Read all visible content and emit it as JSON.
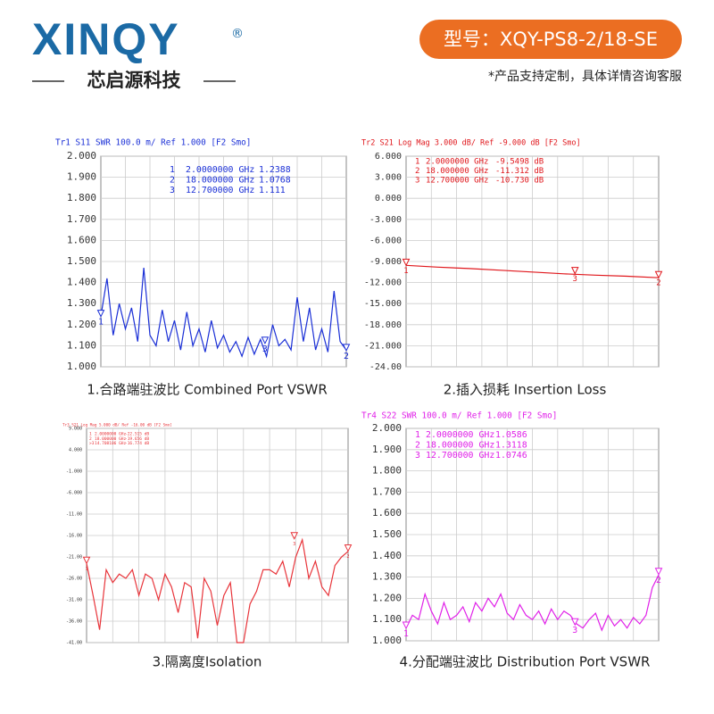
{
  "header": {
    "logo": "XINQY",
    "registered": "®",
    "company": "芯启源科技",
    "model": "型号：XQY-PS8-2/18-SE",
    "note": "*产品支持定制，具体详情咨询客服"
  },
  "chart_data": [
    {
      "type": "line",
      "title": "Tr1 S11 SWR 100.0 m/ Ref 1.000 [F2 Smo]",
      "caption": "1.合路端驻波比 Combined Port VSWR",
      "x": [
        2,
        2.4,
        2.8,
        3.2,
        3.6,
        4,
        4.4,
        4.8,
        5.2,
        5.6,
        6,
        6.4,
        6.8,
        7.2,
        7.6,
        8,
        8.4,
        8.8,
        9.2,
        9.6,
        10,
        10.4,
        10.8,
        11.2,
        11.6,
        12,
        12.4,
        12.8,
        13.2,
        13.6,
        14,
        14.4,
        14.8,
        15.2,
        15.6,
        16,
        16.4,
        16.8,
        17.2,
        17.6,
        18
      ],
      "xlim": [
        2,
        18
      ],
      "ylim": [
        1,
        2
      ],
      "yticks": [
        {
          "value": 1,
          "label": "1.000"
        },
        {
          "value": 1.1,
          "label": "1.100"
        },
        {
          "value": 1.2,
          "label": "1.200"
        },
        {
          "value": 1.3,
          "label": "1.300"
        },
        {
          "value": 1.4,
          "label": "1.400"
        },
        {
          "value": 1.5,
          "label": "1.500"
        },
        {
          "value": 1.6,
          "label": "1.600"
        },
        {
          "value": 1.7,
          "label": "1.700"
        },
        {
          "value": 1.8,
          "label": "1.800"
        },
        {
          "value": 1.9,
          "label": "1.900"
        },
        {
          "value": 2,
          "label": "2.000"
        }
      ],
      "grid": true,
      "series": [
        {
          "color": "#1a2fd6",
          "values": [
            1.24,
            1.42,
            1.15,
            1.3,
            1.18,
            1.28,
            1.12,
            1.47,
            1.15,
            1.1,
            1.27,
            1.12,
            1.22,
            1.08,
            1.26,
            1.1,
            1.18,
            1.07,
            1.22,
            1.09,
            1.15,
            1.07,
            1.12,
            1.05,
            1.14,
            1.06,
            1.13,
            1.05,
            1.2,
            1.1,
            1.13,
            1.08,
            1.33,
            1.12,
            1.28,
            1.08,
            1.18,
            1.07,
            1.36,
            1.12,
            1.08
          ]
        }
      ],
      "markers": [
        {
          "label": "1",
          "x": 2,
          "freq": "2.0000000 GHz",
          "value": 1.2388
        },
        {
          "label": "2",
          "x": 18,
          "freq": "18.000000 GHz",
          "value": 1.0768
        },
        {
          "label": "3",
          "x": 12.7,
          "freq": "12.700000 GHz",
          "value": 1.111
        }
      ]
    },
    {
      "type": "line",
      "title": "Tr2 S21 Log Mag 3.000 dB/ Ref -9.000 dB [F2 Smo]",
      "caption": "2.插入损耗 Insertion Loss",
      "x": [
        2,
        4,
        6,
        8,
        10,
        12,
        14,
        16,
        18
      ],
      "xlim": [
        2,
        18
      ],
      "ylim": [
        -24,
        6
      ],
      "yticks": [
        {
          "value": -24,
          "label": "-24.00"
        },
        {
          "value": -21,
          "label": "-21.000"
        },
        {
          "value": -18,
          "label": "-18.000"
        },
        {
          "value": -15,
          "label": "-15.000"
        },
        {
          "value": -12,
          "label": "-12.000"
        },
        {
          "value": -9,
          "label": "-9.000"
        },
        {
          "value": -6,
          "label": "-6.000"
        },
        {
          "value": -3,
          "label": "-3.000"
        },
        {
          "value": 0,
          "label": "0.000"
        },
        {
          "value": 3,
          "label": "3.000"
        },
        {
          "value": 6,
          "label": "6.000"
        }
      ],
      "grid": true,
      "series": [
        {
          "color": "#e0161b",
          "values": [
            -9.55,
            -9.8,
            -10.0,
            -10.25,
            -10.5,
            -10.75,
            -10.95,
            -11.1,
            -11.31
          ]
        }
      ],
      "markers": [
        {
          "label": "1",
          "x": 2,
          "freq": "2.0000000 GHz",
          "value": -9.5498,
          "value_label": "-9.5498 dB"
        },
        {
          "label": "2",
          "x": 18,
          "freq": "18.000000 GHz",
          "value": -11.312,
          "value_label": "-11.312 dB"
        },
        {
          "label": "3",
          "x": 12.7,
          "freq": "12.700000 GHz",
          "value": -10.73,
          "value_label": "-10.730 dB"
        }
      ]
    },
    {
      "type": "line",
      "title": "Tr3 S21 Log Mag 5.000 dB/ Ref -16.00 dB [F2 Smo]",
      "caption": "3.隔离度Isolation",
      "x": [
        2,
        2.4,
        2.8,
        3.2,
        3.6,
        4,
        4.4,
        4.8,
        5.2,
        5.6,
        6,
        6.4,
        6.8,
        7.2,
        7.6,
        8,
        8.4,
        8.8,
        9.2,
        9.6,
        10,
        10.4,
        10.8,
        11.2,
        11.6,
        12,
        12.4,
        12.8,
        13.2,
        13.6,
        14,
        14.4,
        14.8,
        15.2,
        15.6,
        16,
        16.4,
        16.8,
        17.2,
        17.6,
        18
      ],
      "xlim": [
        2,
        18
      ],
      "ylim": [
        -41,
        9
      ],
      "yticks": [
        {
          "value": -41,
          "label": "-41.00"
        },
        {
          "value": -36,
          "label": "-36.00"
        },
        {
          "value": -31,
          "label": "-31.00"
        },
        {
          "value": -26,
          "label": "-26.00"
        },
        {
          "value": -21,
          "label": "-21.00"
        },
        {
          "value": -16,
          "label": "-16.00"
        },
        {
          "value": -11,
          "label": "-11.00"
        },
        {
          "value": -6,
          "label": "-6.000"
        },
        {
          "value": -1,
          "label": "-1.000"
        },
        {
          "value": 4,
          "label": "4.000"
        },
        {
          "value": 9,
          "label": "9.000"
        }
      ],
      "grid": true,
      "series": [
        {
          "color": "#e8343a",
          "values": [
            -22.5,
            -30,
            -38,
            -24,
            -27,
            -25,
            -26,
            -24,
            -30,
            -25,
            -26,
            -31,
            -25,
            -28,
            -34,
            -27,
            -28,
            -40,
            -26,
            -29,
            -37,
            -30,
            -27,
            -41,
            -41,
            -32,
            -29,
            -24,
            -24,
            -25,
            -22,
            -28,
            -21,
            -17,
            -26,
            -22,
            -28,
            -30,
            -23,
            -21,
            -19.7
          ]
        }
      ],
      "markers": [
        {
          "label": "1",
          "x": 2,
          "freq": "2.0000000 GHz",
          "value": -22.515,
          "value_label": "-22.515 dB"
        },
        {
          "label": "2",
          "x": 18,
          "freq": "18.000000 GHz",
          "value": -19.656,
          "value_label": "-19.656 dB"
        },
        {
          "label": "3",
          "row_label": ">3",
          "x": 14.708106,
          "freq": "14.708106 GHz",
          "value": -16.774,
          "value_label": "-16.774 dB"
        }
      ]
    },
    {
      "type": "line",
      "title": "Tr4 S22 SWR 100.0 m/ Ref 1.000 [F2 Smo]",
      "caption": "4.分配端驻波比 Distribution  Port VSWR",
      "x": [
        2,
        2.4,
        2.8,
        3.2,
        3.6,
        4,
        4.4,
        4.8,
        5.2,
        5.6,
        6,
        6.4,
        6.8,
        7.2,
        7.6,
        8,
        8.4,
        8.8,
        9.2,
        9.6,
        10,
        10.4,
        10.8,
        11.2,
        11.6,
        12,
        12.4,
        12.8,
        13.2,
        13.6,
        14,
        14.4,
        14.8,
        15.2,
        15.6,
        16,
        16.4,
        16.8,
        17.2,
        17.6,
        18
      ],
      "xlim": [
        2,
        18
      ],
      "ylim": [
        1,
        2
      ],
      "yticks": [
        {
          "value": 1,
          "label": "1.000"
        },
        {
          "value": 1.1,
          "label": "1.100"
        },
        {
          "value": 1.2,
          "label": "1.200"
        },
        {
          "value": 1.3,
          "label": "1.300"
        },
        {
          "value": 1.4,
          "label": "1.400"
        },
        {
          "value": 1.5,
          "label": "1.500"
        },
        {
          "value": 1.6,
          "label": "1.600"
        },
        {
          "value": 1.7,
          "label": "1.700"
        },
        {
          "value": 1.8,
          "label": "1.800"
        },
        {
          "value": 1.9,
          "label": "1.900"
        },
        {
          "value": 2,
          "label": "2.000"
        }
      ],
      "grid": true,
      "series": [
        {
          "color": "#e020e8",
          "values": [
            1.06,
            1.12,
            1.1,
            1.22,
            1.14,
            1.08,
            1.18,
            1.1,
            1.12,
            1.16,
            1.09,
            1.18,
            1.14,
            1.2,
            1.16,
            1.22,
            1.13,
            1.1,
            1.17,
            1.12,
            1.1,
            1.14,
            1.08,
            1.15,
            1.1,
            1.14,
            1.12,
            1.08,
            1.06,
            1.1,
            1.13,
            1.05,
            1.12,
            1.07,
            1.1,
            1.06,
            1.11,
            1.08,
            1.12,
            1.25,
            1.31
          ]
        }
      ],
      "markers": [
        {
          "label": "1",
          "x": 2,
          "freq": "2.0000000 GHz",
          "value": 1.0586
        },
        {
          "label": "2",
          "x": 18,
          "freq": "18.000000 GHz",
          "value": 1.3118
        },
        {
          "label": "3",
          "x": 12.7,
          "freq": "12.700000 GHz",
          "value": 1.0746
        }
      ]
    }
  ]
}
